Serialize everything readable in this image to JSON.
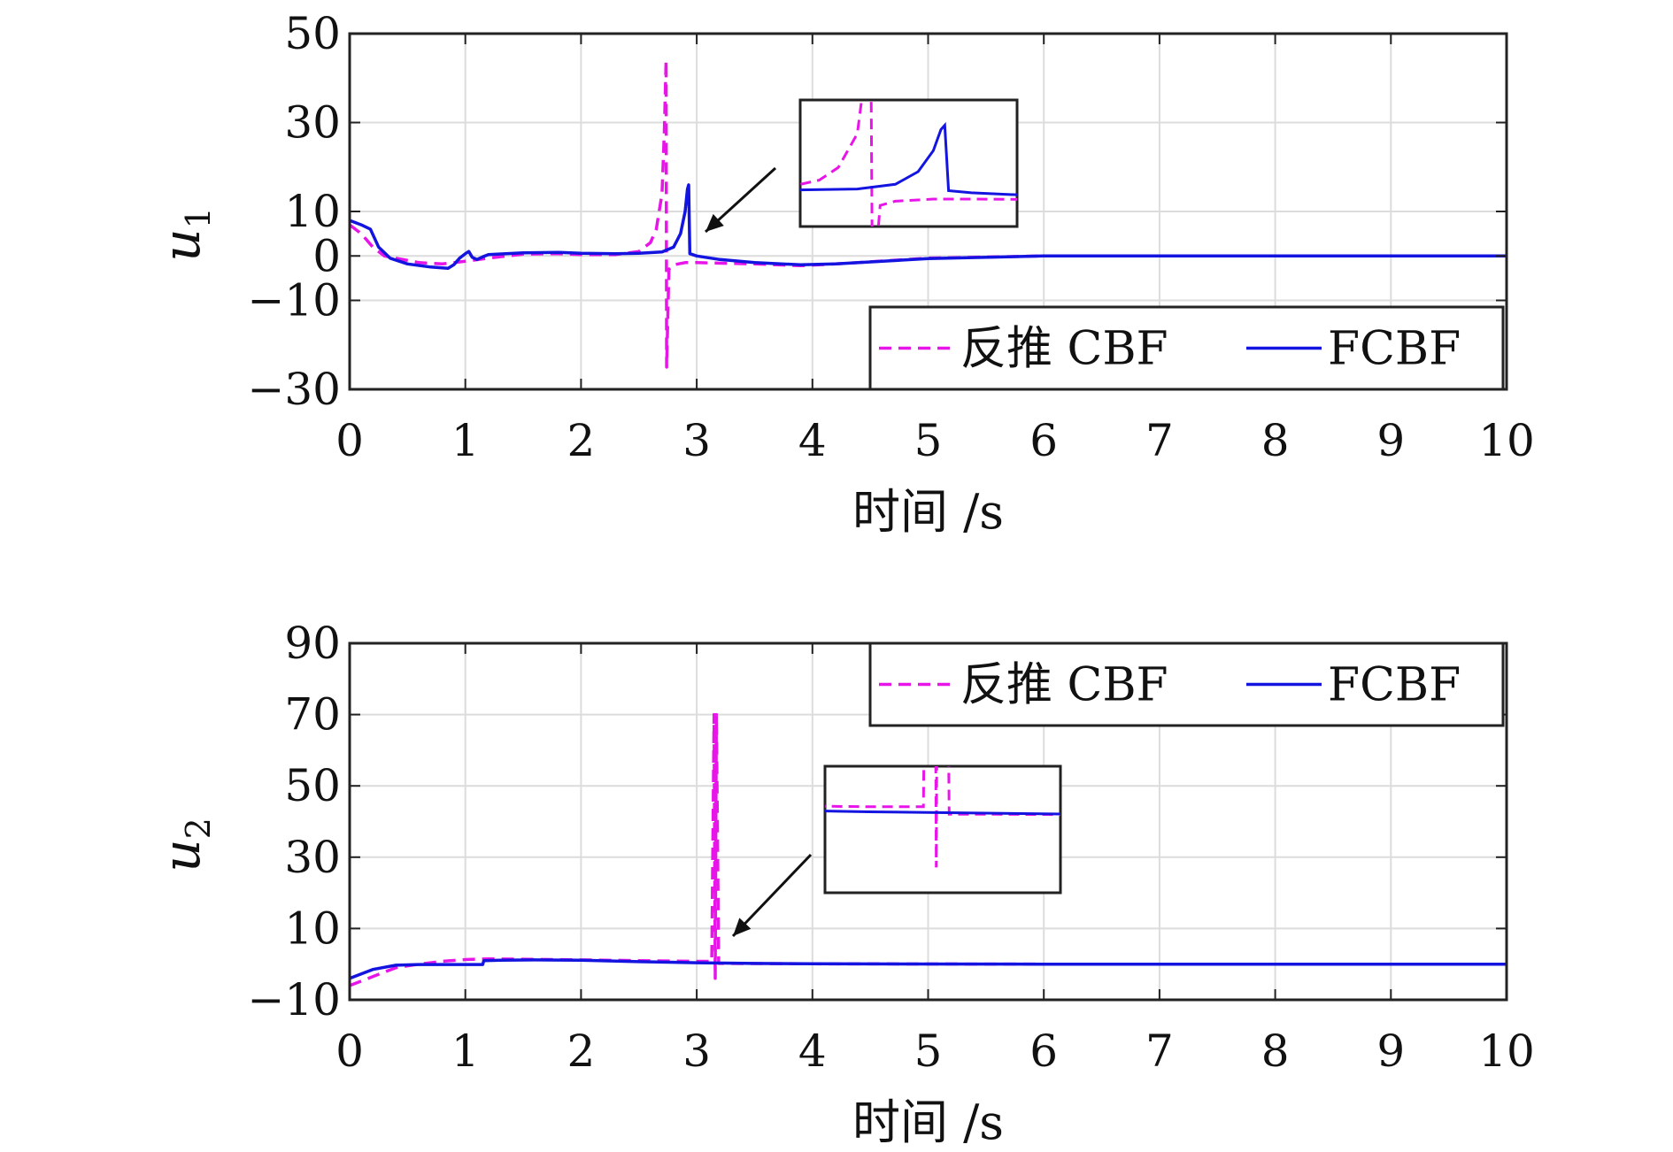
{
  "chart_data": [
    {
      "type": "line",
      "xlabel": "时间 /s",
      "ylabel": "u",
      "ylabel_sub": "1",
      "xlim": [
        0,
        10
      ],
      "ylim": [
        -30,
        50
      ],
      "xticks": [
        0,
        1,
        2,
        3,
        4,
        5,
        6,
        7,
        8,
        9,
        10
      ],
      "xtick_labels": [
        "0",
        "1",
        "2",
        "3",
        "4",
        "5",
        "6",
        "7",
        "8",
        "9",
        "10"
      ],
      "yticks": [
        -30,
        -10,
        0,
        10,
        30,
        50
      ],
      "ytick_labels": [
        "−30",
        "−10",
        "0",
        "10",
        "30",
        "50"
      ],
      "grid": true,
      "legend_position": "bottom-right",
      "series": [
        {
          "name": "反推 CBF",
          "color": "#e815e8",
          "style": "dashed",
          "x": [
            0,
            0.1,
            0.2,
            0.3,
            0.4,
            0.6,
            0.8,
            1.0,
            1.2,
            1.5,
            1.8,
            2.0,
            2.3,
            2.5,
            2.6,
            2.65,
            2.7,
            2.72,
            2.735,
            2.74,
            2.76,
            2.8,
            2.9,
            3.0,
            3.5,
            3.9,
            4.2,
            5.0,
            6.0,
            7.0,
            8.0,
            10.0
          ],
          "y": [
            7,
            5,
            2,
            0,
            -0.5,
            -1.5,
            -1.8,
            -1.2,
            -0.5,
            0.4,
            0.5,
            0.3,
            0.3,
            1,
            3,
            6,
            14,
            28,
            44,
            -25,
            -3,
            -2,
            -1.5,
            -1.5,
            -1.8,
            -2.2,
            -1.8,
            -0.5,
            0,
            0,
            0,
            0
          ]
        },
        {
          "name": "FCBF",
          "color": "#1414e0",
          "style": "solid",
          "x": [
            0,
            0.1,
            0.18,
            0.25,
            0.35,
            0.5,
            0.7,
            0.85,
            0.9,
            0.95,
            1.0,
            1.03,
            1.06,
            1.1,
            1.15,
            1.2,
            1.5,
            1.8,
            2.0,
            2.3,
            2.5,
            2.7,
            2.8,
            2.86,
            2.9,
            2.92,
            2.93,
            2.94,
            3.0,
            3.2,
            3.5,
            3.9,
            4.2,
            5.0,
            6.0,
            7.0,
            8.0,
            10.0
          ],
          "y": [
            8,
            7,
            6,
            2,
            -0.5,
            -1.8,
            -2.5,
            -2.8,
            -2,
            -0.5,
            0.5,
            1,
            -0.3,
            -0.8,
            -0.2,
            0.3,
            0.7,
            0.8,
            0.6,
            0.5,
            0.6,
            0.9,
            2,
            5,
            10,
            15,
            16,
            0.5,
            0,
            -0.8,
            -1.5,
            -2,
            -1.8,
            -0.6,
            0,
            0,
            0,
            0
          ]
        }
      ]
    },
    {
      "type": "line",
      "xlabel": "时间 /s",
      "ylabel": "u",
      "ylabel_sub": "2",
      "xlim": [
        0,
        10
      ],
      "ylim": [
        -10,
        90
      ],
      "xticks": [
        0,
        1,
        2,
        3,
        4,
        5,
        6,
        7,
        8,
        9,
        10
      ],
      "xtick_labels": [
        "0",
        "1",
        "2",
        "3",
        "4",
        "5",
        "6",
        "7",
        "8",
        "9",
        "10"
      ],
      "yticks": [
        -10,
        10,
        30,
        50,
        70,
        90
      ],
      "ytick_labels": [
        "−10",
        "10",
        "30",
        "50",
        "70",
        "90"
      ],
      "grid": true,
      "legend_position": "top-right",
      "series": [
        {
          "name": "反推 CBF",
          "color": "#e815e8",
          "style": "dashed",
          "x": [
            0,
            0.2,
            0.4,
            0.6,
            0.8,
            1.0,
            1.2,
            1.5,
            2.0,
            2.5,
            3.0,
            3.13,
            3.15,
            3.16,
            3.17,
            3.19,
            3.3,
            4.0,
            6.0,
            8.0,
            10.0
          ],
          "y": [
            -6,
            -3.5,
            -1,
            0,
            0.8,
            1.3,
            1.5,
            1.4,
            1.2,
            1.0,
            0.8,
            0.8,
            70,
            -4,
            70,
            0.2,
            0.2,
            0.1,
            0,
            0,
            0
          ]
        },
        {
          "name": "FCBF",
          "color": "#1414e0",
          "style": "solid",
          "x": [
            0,
            0.2,
            0.4,
            0.6,
            0.8,
            1.0,
            1.15,
            1.16,
            1.3,
            1.6,
            2.0,
            2.5,
            3.0,
            3.5,
            4.0,
            6.0,
            8.0,
            10.0
          ],
          "y": [
            -4,
            -1.5,
            -0.3,
            -0.1,
            -0.1,
            -0.1,
            -0.1,
            1.0,
            1.1,
            1.2,
            1.1,
            0.7,
            0.4,
            0.2,
            0.1,
            0,
            0,
            0
          ]
        }
      ]
    }
  ]
}
